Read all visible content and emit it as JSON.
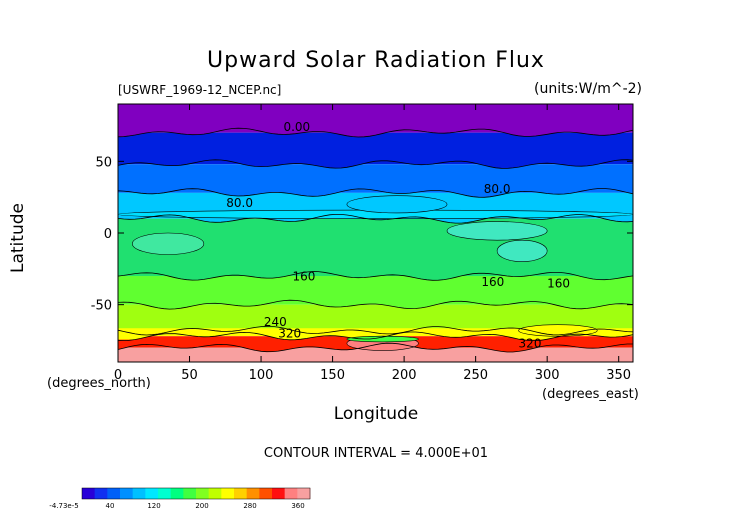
{
  "chart_data": {
    "type": "heatmap",
    "title": "Upward Solar Radiation Flux",
    "subtitle_left": "[USWRF_1969-12_NCEP.nc]",
    "subtitle_right": "(units:W/m^-2)",
    "xlabel": "Longitude",
    "ylabel": "Latitude",
    "x_units": "(degrees_east)",
    "y_units": "(degrees_north)",
    "xlim": [
      0,
      360
    ],
    "ylim": [
      -90,
      90
    ],
    "x_ticks": [
      "0",
      "50",
      "100",
      "150",
      "200",
      "250",
      "300",
      "350"
    ],
    "x_tick_values": [
      0,
      50,
      100,
      150,
      200,
      250,
      300,
      350
    ],
    "y_ticks": [
      "50",
      "0",
      "-50"
    ],
    "y_tick_values": [
      50,
      0,
      -50
    ],
    "contour_interval_text": "CONTOUR INTERVAL = 4.000E+01",
    "contour_labels": [
      {
        "text": "0.00",
        "lon": 125,
        "lat": 71
      },
      {
        "text": "80.0",
        "lon": 85,
        "lat": 18
      },
      {
        "text": "80.0",
        "lon": 265,
        "lat": 28
      },
      {
        "text": "160",
        "lon": 130,
        "lat": -33
      },
      {
        "text": "160",
        "lon": 262,
        "lat": -37
      },
      {
        "text": "160",
        "lon": 308,
        "lat": -38
      },
      {
        "text": "240",
        "lon": 110,
        "lat": -65
      },
      {
        "text": "320",
        "lon": 120,
        "lat": -73
      },
      {
        "text": "320",
        "lon": 288,
        "lat": -80
      }
    ],
    "colorbar": {
      "labels": [
        "-4.73e-5",
        "40",
        "120",
        "200",
        "280",
        "360"
      ],
      "label_values": [
        0,
        40,
        120,
        200,
        280,
        360
      ],
      "min": 0,
      "max": 380,
      "colors": [
        "#2800d8",
        "#1030f0",
        "#0060f8",
        "#0090ff",
        "#00c0ff",
        "#00e8ff",
        "#00ffd0",
        "#00ff80",
        "#40ff40",
        "#80ff20",
        "#c0ff00",
        "#ffff00",
        "#ffd000",
        "#ff9000",
        "#ff5000",
        "#ff1010",
        "#ff8080",
        "#f8a0a0"
      ]
    },
    "bands": [
      {
        "lat_top": 90,
        "lat_bottom": 70,
        "color": "#8000c0"
      },
      {
        "lat_top": 70,
        "lat_bottom": 48,
        "color": "#0020e0"
      },
      {
        "lat_top": 48,
        "lat_bottom": 28,
        "color": "#0070ff"
      },
      {
        "lat_top": 28,
        "lat_bottom": 10,
        "color": "#00c8ff"
      },
      {
        "lat_top": 10,
        "lat_bottom": -30,
        "color": "#20e070"
      },
      {
        "lat_top": -30,
        "lat_bottom": -50,
        "color": "#60ff30"
      },
      {
        "lat_top": -50,
        "lat_bottom": -68,
        "color": "#a0ff10"
      },
      {
        "lat_top": -68,
        "lat_bottom": -72,
        "color": "#ffff00"
      },
      {
        "lat_top": -72,
        "lat_bottom": -80,
        "color": "#ff2000"
      },
      {
        "lat_top": -80,
        "lat_bottom": -90,
        "color": "#f8a0a0"
      }
    ],
    "patches": [
      {
        "lon0": 0,
        "lon1": 360,
        "lat0": 10,
        "lat1": 16,
        "color": "#00e0ff"
      },
      {
        "lon0": 160,
        "lon1": 230,
        "lat0": 14,
        "lat1": 26,
        "color": "#00c8ff"
      },
      {
        "lon0": 230,
        "lon1": 300,
        "lat0": -5,
        "lat1": 8,
        "color": "#40e8c0"
      },
      {
        "lon0": 265,
        "lon1": 300,
        "lat0": -20,
        "lat1": -5,
        "color": "#40e8c0"
      },
      {
        "lon0": 10,
        "lon1": 60,
        "lat0": -15,
        "lat1": 0,
        "color": "#40e8a0"
      },
      {
        "lon0": 280,
        "lon1": 335,
        "lat0": -72,
        "lat1": -64,
        "color": "#ffff00"
      },
      {
        "lon0": 160,
        "lon1": 210,
        "lat0": -82,
        "lat1": -72,
        "color": "#ff8080"
      },
      {
        "lon0": 160,
        "lon1": 210,
        "lat0": -76,
        "lat1": -72,
        "color": "#40ff40"
      }
    ]
  }
}
